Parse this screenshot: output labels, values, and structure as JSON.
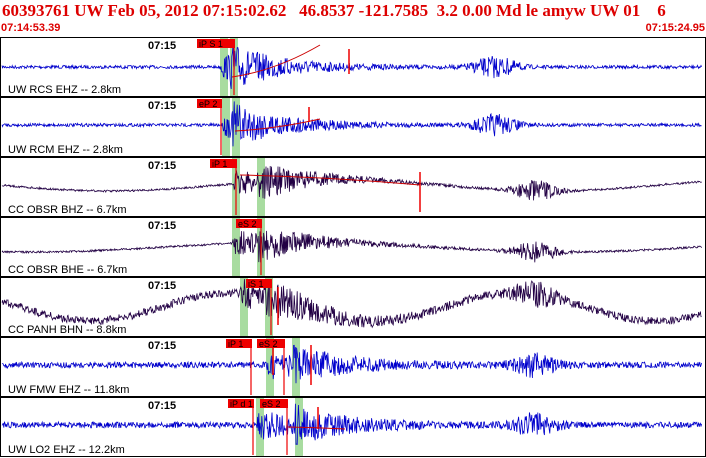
{
  "header": {
    "title": "60393761 UW Feb 05, 2012 07:15:02.62   46.8537 -121.7585  3.2 0.00 Md le amyw UW 01    6",
    "time_start": "07:14:53.39",
    "time_end": "07:15:24.95"
  },
  "colors": {
    "header_text": "#dd0000",
    "trace_ehz": "#0000cc",
    "trace_broadband": "#220044",
    "pick_box": "#ee0000",
    "highlight": "#a8dca0",
    "coda_line": "#cc0000"
  },
  "panels": [
    {
      "label": "UW RCS EHZ -- 2.8km",
      "time_tick": "07:15",
      "picks": [
        "iP S 1"
      ],
      "trace": "blue"
    },
    {
      "label": "UW RCM EHZ -- 2.8km",
      "time_tick": "07:15",
      "picks": [
        "eP 2"
      ],
      "trace": "blue"
    },
    {
      "label": "CC OBSR BHZ -- 6.7km",
      "time_tick": "07:15",
      "picks": [
        "iP 1"
      ],
      "trace": "dark"
    },
    {
      "label": "CC OBSR BHE -- 6.7km",
      "time_tick": "07:15",
      "picks": [
        "eS 2"
      ],
      "trace": "dark"
    },
    {
      "label": "CC PANH BHN -- 8.8km",
      "time_tick": "07:15",
      "picks": [
        "iS 1"
      ],
      "trace": "dark"
    },
    {
      "label": "UW FMW EHZ -- 11.8km",
      "time_tick": "07:15",
      "picks": [
        "iP 1",
        "eS 2"
      ],
      "trace": "blue"
    },
    {
      "label": "UW LO2 EHZ -- 12.2km",
      "time_tick": "07:15",
      "picks": [
        "iP d 1",
        "eS 2"
      ],
      "trace": "blue"
    }
  ]
}
